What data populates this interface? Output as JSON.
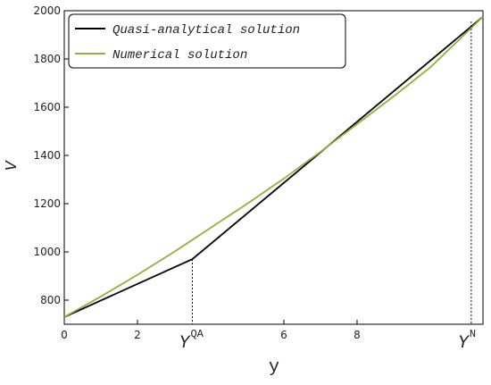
{
  "chart_data": {
    "type": "line",
    "x_label": "y",
    "y_label": "V",
    "xlim": [
      0,
      11.44
    ],
    "ylim": [
      700,
      2000
    ],
    "xticks": [
      0,
      2,
      6,
      8
    ],
    "yticks": [
      800,
      1000,
      1200,
      1400,
      1600,
      1800,
      2000
    ],
    "legend": "upper-left",
    "series": [
      {
        "name": "Quasi-analytical solution",
        "color": "#000000",
        "x": [
          0,
          3.5,
          11.44
        ],
        "values": [
          730,
          970,
          1975
        ]
      },
      {
        "name": "Numerical solution",
        "color": "#8db33a",
        "x": [
          0,
          1,
          2,
          3,
          4,
          5,
          6,
          7,
          8,
          9,
          10,
          11.44
        ],
        "values": [
          730,
          815,
          905,
          1000,
          1100,
          1200,
          1304,
          1415,
          1530,
          1645,
          1765,
          1975
        ]
      }
    ],
    "markers": [
      {
        "x": 3.5,
        "y": 970,
        "label": "Y",
        "superscript": "QA"
      },
      {
        "x": 11.12,
        "y": 1955,
        "label": "Y",
        "superscript": "N"
      }
    ]
  }
}
